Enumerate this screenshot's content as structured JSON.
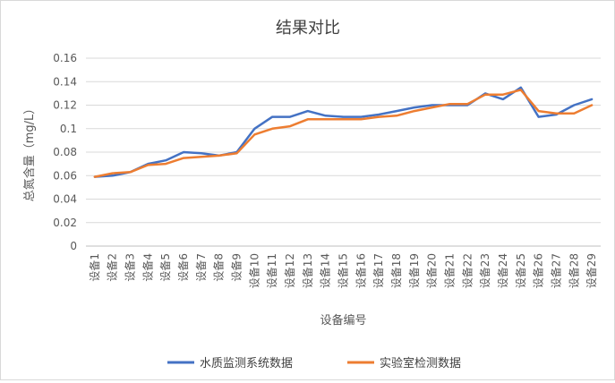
{
  "chart_data": {
    "type": "line",
    "title": "结果对比",
    "xlabel": "设备编号",
    "ylabel": "总氮含量（mg/L）",
    "ylim": [
      0,
      0.16
    ],
    "yticks": [
      "0",
      "0.02",
      "0.04",
      "0.06",
      "0.08",
      "0.1",
      "0.12",
      "0.14",
      "0.16"
    ],
    "ytick_values": [
      0,
      0.02,
      0.04,
      0.06,
      0.08,
      0.1,
      0.12,
      0.14,
      0.16
    ],
    "grid": true,
    "legend_position": "bottom",
    "categories": [
      "设备1",
      "设备2",
      "设备3",
      "设备4",
      "设备5",
      "设备6",
      "设备7",
      "设备8",
      "设备9",
      "设备10",
      "设备11",
      "设备12",
      "设备13",
      "设备14",
      "设备15",
      "设备16",
      "设备17",
      "设备18",
      "设备19",
      "设备20",
      "设备21",
      "设备22",
      "设备23",
      "设备24",
      "设备25",
      "设备26",
      "设备27",
      "设备28",
      "设备29"
    ],
    "series": [
      {
        "name": "水质监测系统数据",
        "color": "#4472C4",
        "values": [
          0.059,
          0.06,
          0.063,
          0.07,
          0.073,
          0.08,
          0.079,
          0.077,
          0.08,
          0.1,
          0.11,
          0.11,
          0.115,
          0.111,
          0.11,
          0.11,
          0.112,
          0.115,
          0.118,
          0.12,
          0.12,
          0.12,
          0.13,
          0.125,
          0.135,
          0.11,
          0.112,
          0.12,
          0.125
        ]
      },
      {
        "name": "实验室检测数据",
        "color": "#ED7D31",
        "values": [
          0.059,
          0.062,
          0.063,
          0.069,
          0.07,
          0.075,
          0.076,
          0.077,
          0.079,
          0.095,
          0.1,
          0.102,
          0.108,
          0.108,
          0.108,
          0.108,
          0.11,
          0.111,
          0.115,
          0.118,
          0.121,
          0.121,
          0.129,
          0.129,
          0.133,
          0.115,
          0.113,
          0.113,
          0.12
        ]
      }
    ]
  }
}
